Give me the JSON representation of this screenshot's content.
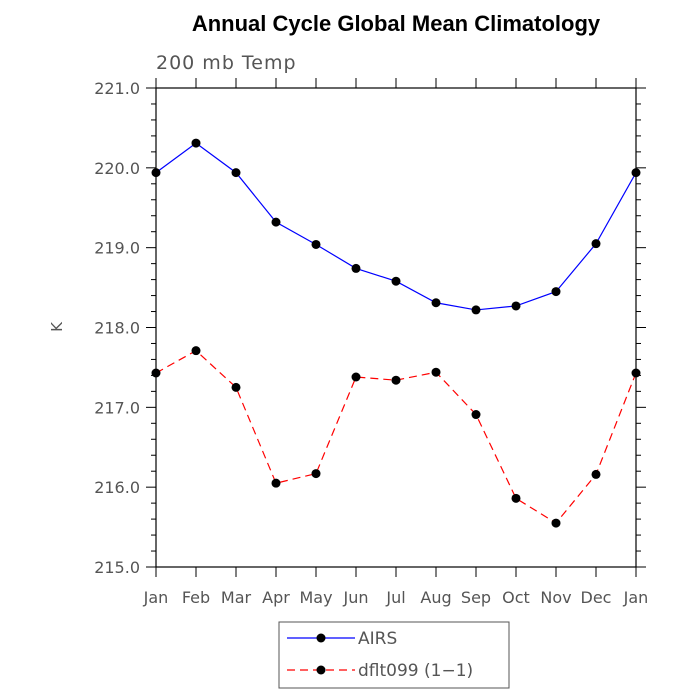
{
  "chart_data": {
    "type": "line",
    "title": "Annual Cycle Global Mean Climatology",
    "subtitle": "200 mb Temp",
    "xlabel": "",
    "ylabel": "K",
    "categories": [
      "Jan",
      "Feb",
      "Mar",
      "Apr",
      "May",
      "Jun",
      "Jul",
      "Aug",
      "Sep",
      "Oct",
      "Nov",
      "Dec",
      "Jan"
    ],
    "ylim": [
      215.0,
      221.0
    ],
    "yticks": [
      "215.0",
      "216.0",
      "217.0",
      "218.0",
      "219.0",
      "220.0",
      "221.0"
    ],
    "grid": false,
    "legend_position": "bottom-center",
    "series": [
      {
        "name": "AIRS",
        "color": "#0000ff",
        "line_style": "solid",
        "marker": "filled-circle",
        "values": [
          219.94,
          220.31,
          219.94,
          219.32,
          219.04,
          218.74,
          218.58,
          218.31,
          218.22,
          218.27,
          218.45,
          219.05,
          219.94
        ]
      },
      {
        "name": "dflt099 (1−1)",
        "color": "#ff0000",
        "line_style": "dashed",
        "marker": "filled-circle",
        "values": [
          217.43,
          217.71,
          217.25,
          216.05,
          216.17,
          217.38,
          217.34,
          217.44,
          216.91,
          215.86,
          215.55,
          216.16,
          217.43
        ]
      }
    ]
  }
}
